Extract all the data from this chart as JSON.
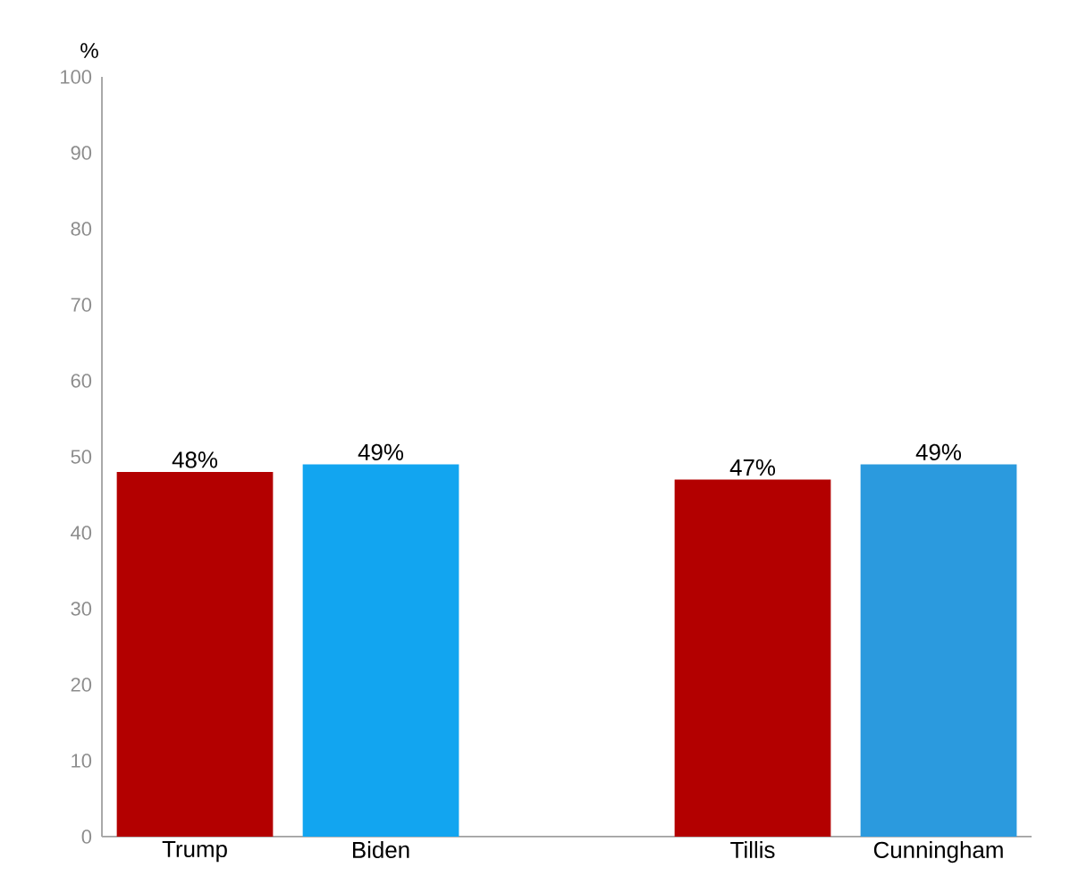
{
  "chart_data": {
    "type": "bar",
    "ylabel": "%",
    "categories": [
      "Trump",
      "Biden",
      null,
      "Tillis",
      "Cunningham"
    ],
    "values": [
      48,
      49,
      null,
      47,
      49
    ],
    "colors": [
      "#b30000",
      "#12a5f0",
      null,
      "#b30000",
      "#2b9ade"
    ],
    "value_labels": [
      "48%",
      "49%",
      null,
      "47%",
      "49%"
    ],
    "ylim": [
      0,
      100
    ],
    "yticks": [
      0,
      10,
      20,
      30,
      40,
      50,
      60,
      70,
      80,
      90,
      100
    ]
  }
}
